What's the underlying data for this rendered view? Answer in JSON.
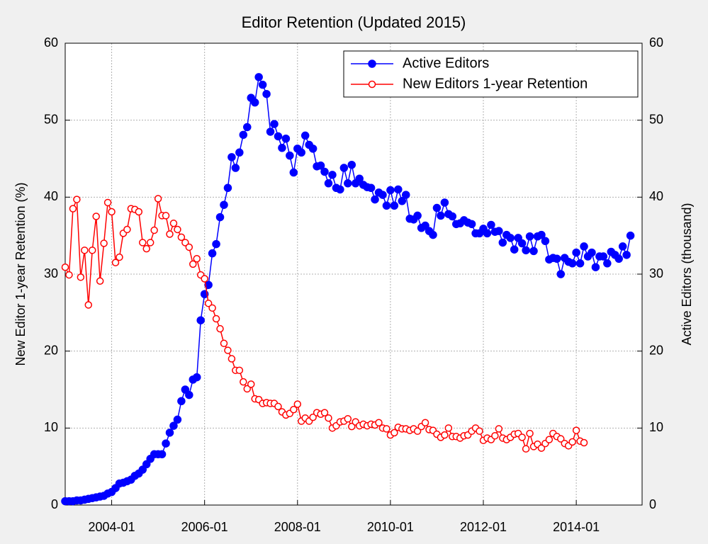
{
  "chart_data": {
    "type": "line",
    "title": "Editor Retention (Updated 2015)",
    "ylabel": "New Editor 1-year Retention (%)",
    "y2label": "Active Editors (thousand)",
    "x": [
      "2003-01",
      "2003-02",
      "2003-03",
      "2003-04",
      "2003-05",
      "2003-06",
      "2003-07",
      "2003-08",
      "2003-09",
      "2003-10",
      "2003-11",
      "2003-12",
      "2004-01",
      "2004-02",
      "2004-03",
      "2004-04",
      "2004-05",
      "2004-06",
      "2004-07",
      "2004-08",
      "2004-09",
      "2004-10",
      "2004-11",
      "2004-12",
      "2005-01",
      "2005-02",
      "2005-03",
      "2005-04",
      "2005-05",
      "2005-06",
      "2005-07",
      "2005-08",
      "2005-09",
      "2005-10",
      "2005-11",
      "2005-12",
      "2006-01",
      "2006-02",
      "2006-03",
      "2006-04",
      "2006-05",
      "2006-06",
      "2006-07",
      "2006-08",
      "2006-09",
      "2006-10",
      "2006-11",
      "2006-12",
      "2007-01",
      "2007-02",
      "2007-03",
      "2007-04",
      "2007-05",
      "2007-06",
      "2007-07",
      "2007-08",
      "2007-09",
      "2007-10",
      "2007-11",
      "2007-12",
      "2008-01",
      "2008-02",
      "2008-03",
      "2008-04",
      "2008-05",
      "2008-06",
      "2008-07",
      "2008-08",
      "2008-09",
      "2008-10",
      "2008-11",
      "2008-12",
      "2009-01",
      "2009-02",
      "2009-03",
      "2009-04",
      "2009-05",
      "2009-06",
      "2009-07",
      "2009-08",
      "2009-09",
      "2009-10",
      "2009-11",
      "2009-12",
      "2010-01",
      "2010-02",
      "2010-03",
      "2010-04",
      "2010-05",
      "2010-06",
      "2010-07",
      "2010-08",
      "2010-09",
      "2010-10",
      "2010-11",
      "2010-12",
      "2011-01",
      "2011-02",
      "2011-03",
      "2011-04",
      "2011-05",
      "2011-06",
      "2011-07",
      "2011-08",
      "2011-09",
      "2011-10",
      "2011-11",
      "2011-12",
      "2012-01",
      "2012-02",
      "2012-03",
      "2012-04",
      "2012-05",
      "2012-06",
      "2012-07",
      "2012-08",
      "2012-09",
      "2012-10",
      "2012-11",
      "2012-12",
      "2013-01",
      "2013-02",
      "2013-03",
      "2013-04",
      "2013-05",
      "2013-06",
      "2013-07",
      "2013-08",
      "2013-09",
      "2013-10",
      "2013-11",
      "2013-12",
      "2014-01",
      "2014-02",
      "2014-03",
      "2014-04",
      "2014-05",
      "2014-06",
      "2014-07",
      "2014-08",
      "2014-09",
      "2014-10",
      "2014-11",
      "2014-12",
      "2015-01",
      "2015-02",
      "2015-03"
    ],
    "series": [
      {
        "name": "Active Editors",
        "color": "#0000ff",
        "axis": "y2",
        "marker": "filled",
        "values": [
          0.5,
          0.5,
          0.5,
          0.6,
          0.6,
          0.7,
          0.8,
          0.9,
          1.0,
          1.1,
          1.2,
          1.5,
          1.7,
          2.2,
          2.8,
          2.9,
          3.1,
          3.3,
          3.8,
          4.1,
          4.6,
          5.3,
          6.0,
          6.6,
          6.6,
          6.6,
          8.0,
          9.4,
          10.3,
          11.1,
          13.5,
          15.0,
          14.3,
          16.3,
          16.6,
          24.0,
          27.4,
          28.6,
          32.7,
          33.9,
          37.4,
          39.0,
          41.2,
          45.2,
          43.8,
          45.8,
          48.1,
          49.1,
          52.9,
          52.3,
          55.6,
          54.6,
          53.4,
          48.5,
          49.5,
          47.9,
          46.4,
          47.6,
          45.4,
          43.2,
          46.3,
          45.8,
          48.0,
          46.8,
          46.3,
          44.0,
          44.1,
          43.3,
          41.8,
          42.9,
          41.2,
          41.0,
          43.8,
          41.8,
          44.2,
          41.8,
          42.4,
          41.6,
          41.3,
          41.2,
          39.7,
          40.6,
          40.3,
          38.9,
          40.9,
          38.9,
          41.0,
          39.5,
          40.3,
          37.2,
          37.1,
          37.6,
          36.0,
          36.3,
          35.6,
          35.1,
          38.6,
          37.6,
          39.3,
          37.8,
          37.5,
          36.5,
          36.6,
          37.0,
          36.7,
          36.5,
          35.3,
          35.3,
          35.9,
          35.3,
          36.4,
          35.5,
          35.6,
          34.1,
          35.1,
          34.7,
          33.2,
          34.7,
          34.0,
          33.1,
          34.9,
          33.0,
          34.9,
          35.1,
          34.3,
          31.9,
          32.1,
          32.0,
          30.0,
          32.1,
          31.6,
          31.4,
          32.8,
          31.4,
          33.6,
          32.3,
          32.8,
          30.9,
          32.3,
          32.3,
          31.4,
          32.9,
          32.5,
          32.0,
          33.6,
          32.5,
          35.0
        ]
      },
      {
        "name": "New Editors 1-year Retention",
        "color": "#ff0000",
        "axis": "y",
        "marker": "open",
        "values": [
          30.9,
          29.9,
          38.5,
          39.7,
          29.6,
          33.1,
          26.0,
          33.1,
          37.5,
          29.1,
          34.0,
          39.3,
          38.1,
          31.5,
          32.2,
          35.3,
          35.8,
          38.5,
          38.4,
          38.1,
          34.1,
          33.3,
          34.1,
          35.7,
          39.8,
          37.6,
          37.6,
          35.2,
          36.6,
          35.8,
          34.8,
          34.1,
          33.5,
          31.3,
          32.0,
          29.9,
          29.4,
          26.2,
          25.6,
          24.2,
          22.9,
          21.0,
          20.1,
          19.0,
          17.5,
          17.5,
          16.0,
          15.1,
          15.7,
          13.8,
          13.7,
          13.2,
          13.3,
          13.2,
          13.2,
          12.8,
          12.1,
          11.7,
          11.9,
          12.4,
          13.1,
          10.9,
          11.3,
          10.9,
          11.4,
          12.0,
          11.8,
          12.0,
          11.3,
          10.0,
          10.3,
          10.8,
          10.9,
          11.2,
          10.2,
          10.8,
          10.3,
          10.5,
          10.3,
          10.5,
          10.4,
          10.7,
          10.0,
          9.9,
          9.1,
          9.4,
          10.1,
          9.9,
          9.9,
          9.7,
          9.9,
          9.6,
          10.2,
          10.7,
          9.8,
          9.7,
          9.2,
          8.8,
          9.1,
          10.0,
          8.9,
          8.9,
          8.7,
          9.0,
          9.1,
          9.6,
          10.0,
          9.6,
          8.4,
          8.7,
          8.5,
          9.0,
          9.9,
          8.7,
          8.5,
          8.8,
          9.2,
          9.3,
          8.8,
          7.3,
          9.3,
          7.6,
          7.9,
          7.4,
          8.0,
          8.5,
          9.3,
          8.9,
          8.6,
          8.0,
          7.7,
          8.2,
          9.7,
          8.3,
          8.1,
          null,
          null,
          null,
          null,
          null,
          null,
          null,
          null,
          null,
          null,
          null,
          null
        ]
      }
    ],
    "xlim": [
      "2003-01",
      "2015-06"
    ],
    "xticks": [
      "2004-01",
      "2006-01",
      "2008-01",
      "2010-01",
      "2012-01",
      "2014-01"
    ],
    "ylim": [
      0,
      60
    ],
    "yticks": [
      0,
      10,
      20,
      30,
      40,
      50,
      60
    ],
    "y2lim": [
      0,
      60
    ],
    "y2ticks": [
      0,
      10,
      20,
      30,
      40,
      50,
      60
    ],
    "grid": true,
    "legend": "upper right"
  }
}
